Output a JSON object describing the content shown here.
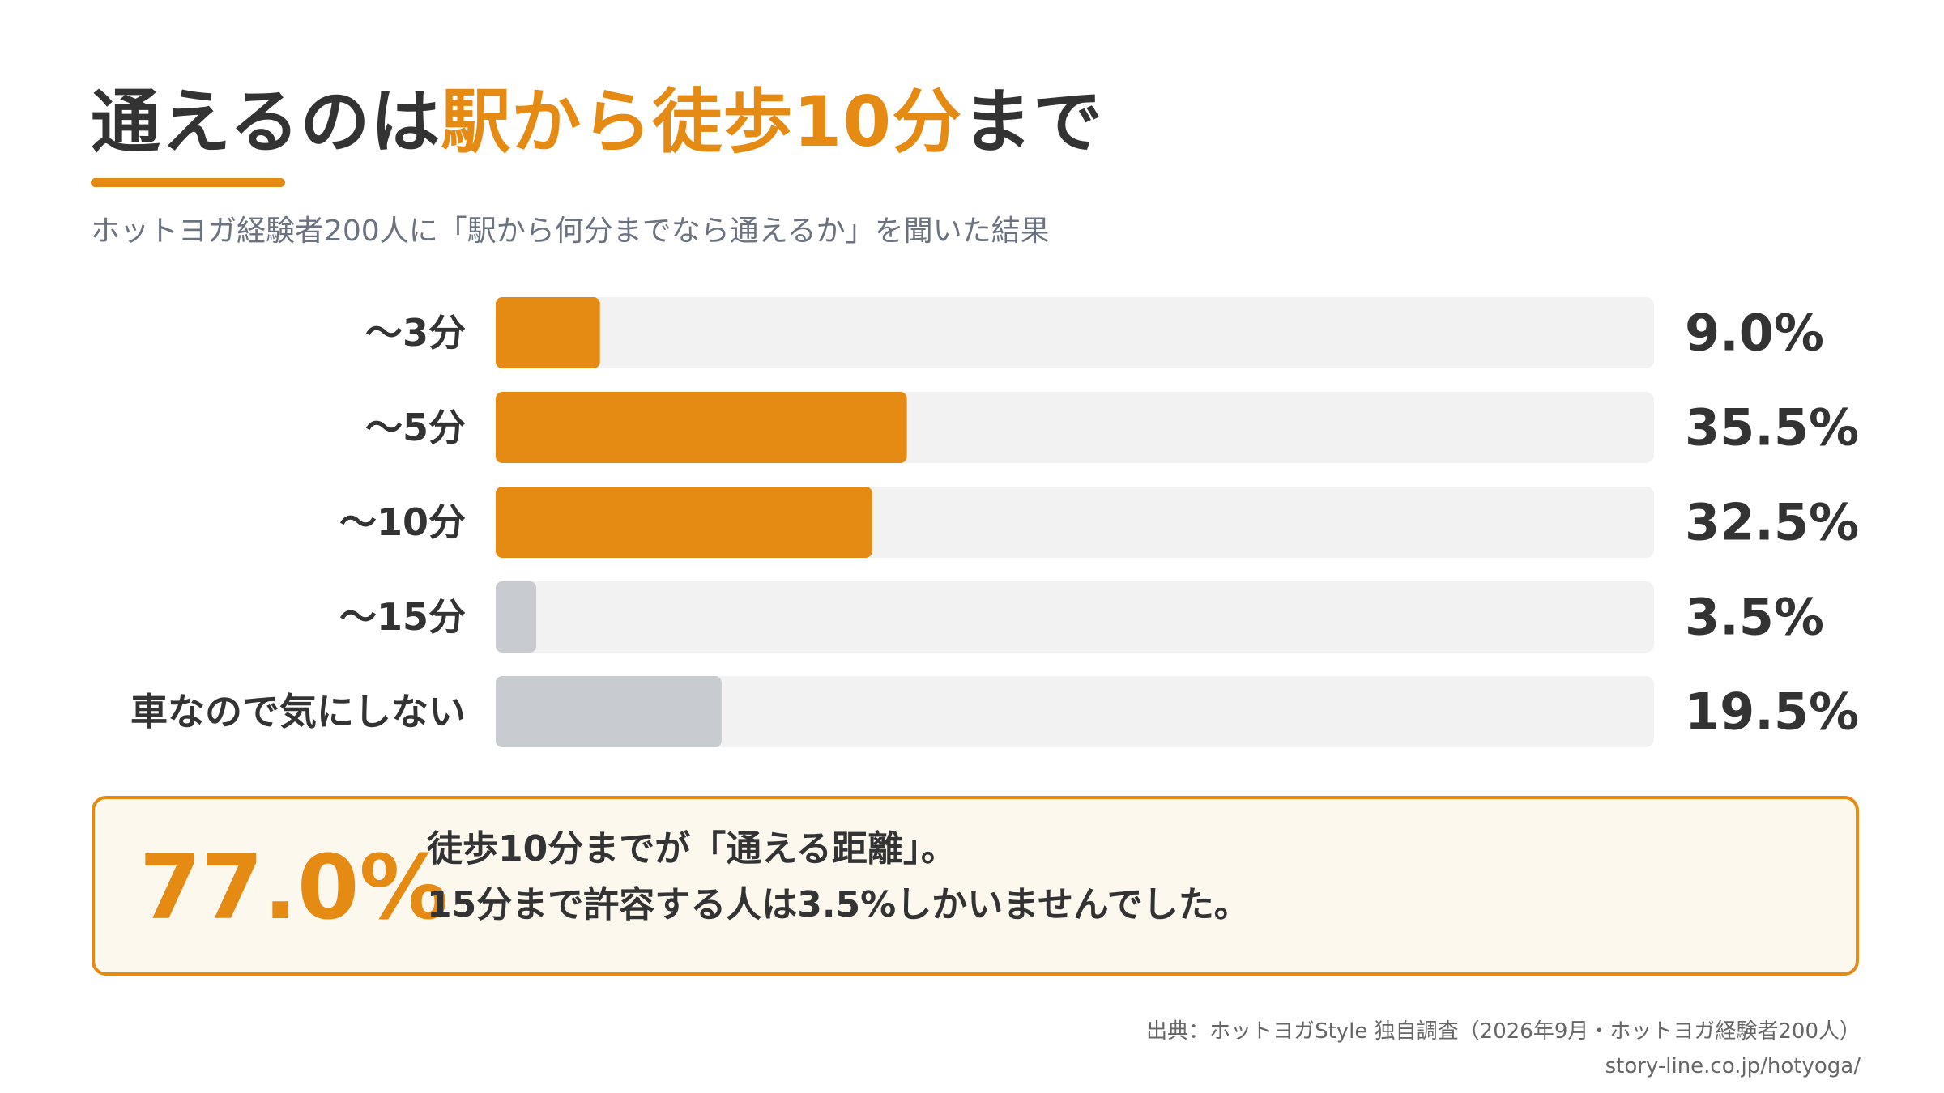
{
  "title": {
    "prefix": "通えるのは",
    "highlight": "駅から徒歩10分",
    "suffix": "まで"
  },
  "subtitle": "ホットヨガ経験者200人に「駅から何分までなら通えるか」を聞いた結果",
  "colors": {
    "accent": "#E58A13",
    "muted_bar": "#C8CCD1",
    "track": "#F2F2F2",
    "text": "#333333",
    "callout_bg": "#FDF8EE"
  },
  "chart_data": {
    "type": "bar",
    "orientation": "horizontal",
    "categories": [
      "〜3分",
      "〜5分",
      "〜10分",
      "〜15分",
      "車なので気にしない"
    ],
    "values": [
      9.0,
      35.5,
      32.5,
      3.5,
      19.5
    ],
    "value_labels": [
      "9.0%",
      "35.5%",
      "32.5%",
      "3.5%",
      "19.5%"
    ],
    "bar_colors": [
      "#E58A13",
      "#E58A13",
      "#E58A13",
      "#C8CCD1",
      "#C8CCD1"
    ],
    "xlim": [
      0,
      100
    ],
    "grid": false
  },
  "callout": {
    "value": "77.0%",
    "line1": "徒歩10分までが「通える距離」。",
    "line2": "15分まで許容する人は3.5%しかいませんでした。"
  },
  "source": "出典：ホットヨガStyle 独自調査（2026年9月・ホットヨガ経験者200人）",
  "url": "story-line.co.jp/hotyoga/"
}
